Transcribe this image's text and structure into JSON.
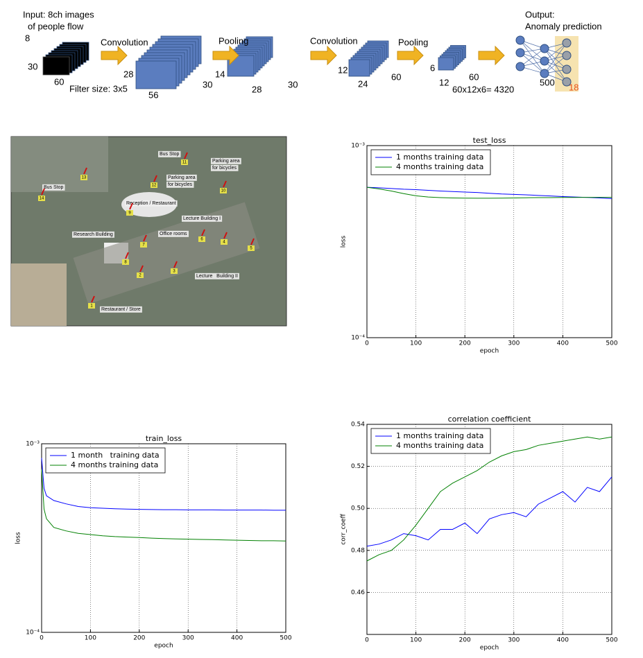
{
  "diagram": {
    "labels": [
      "Input: 8ch images",
      "of people flow",
      "8",
      "30",
      "60",
      "Filter size: 3x5",
      "Convolution",
      "28",
      "56",
      "30",
      "Pooling",
      "14",
      "28",
      "30",
      "Convolution",
      "12",
      "24",
      "60",
      "Pooling",
      "6",
      "12",
      "60",
      "60x12x6= 4320",
      "500",
      "18",
      "Output:",
      "Anomaly prediction"
    ]
  },
  "map": {
    "labels": [
      "Bus Stop",
      "Bus Stop",
      "Parking area",
      "for bicycles",
      "Parking area",
      "for bicycles",
      "Reception / Restaurant",
      "Lecture Building I",
      "Office rooms",
      "Research Building",
      "Lecture   Building II",
      "Restaurant / Store"
    ],
    "markers": [
      "1",
      "2",
      "3",
      "4",
      "5",
      "6",
      "7",
      "8",
      "9",
      "10",
      "11",
      "12",
      "13",
      "14"
    ]
  },
  "chart_data": [
    {
      "type": "line",
      "title": "test_loss",
      "x_label": "epoch",
      "y_label": "loss",
      "log_scale": true,
      "grid": true,
      "legend": "upper left",
      "x": [
        0,
        25,
        50,
        75,
        100,
        125,
        150,
        175,
        200,
        225,
        250,
        275,
        300,
        325,
        350,
        375,
        400,
        425,
        450,
        475,
        500
      ],
      "xlim": [
        0,
        500
      ],
      "xticks": [
        0,
        100,
        200,
        300,
        400,
        500
      ],
      "ylim": [
        0.0001,
        0.001
      ],
      "yticks": [
        {
          "value": 0.0001,
          "label": "10⁻⁴"
        },
        {
          "value": 0.001,
          "label": "10⁻³"
        }
      ],
      "series": [
        {
          "name": "1 months training data",
          "color": "#0000ff",
          "values": [
            0.000607,
            0.000603,
            0.000598,
            0.000593,
            0.00059,
            0.000585,
            0.00058,
            0.000577,
            0.000573,
            0.00057,
            0.000565,
            0.00056,
            0.000557,
            0.000554,
            0.00055,
            0.000547,
            0.000543,
            0.00054,
            0.000537,
            0.000534,
            0.00053
          ]
        },
        {
          "name": "4 months training data",
          "color": "#008000",
          "values": [
            0.000607,
            0.000595,
            0.00058,
            0.000562,
            0.000548,
            0.00054,
            0.000536,
            0.000534,
            0.000533,
            0.000532,
            0.000532,
            0.000533,
            0.000534,
            0.000535,
            0.000536,
            0.000536,
            0.000537,
            0.000537,
            0.000538,
            0.000538,
            0.000538
          ]
        }
      ]
    },
    {
      "type": "line",
      "title": "train_loss",
      "x_label": "epoch",
      "y_label": "loss",
      "log_scale": true,
      "grid": true,
      "legend": "upper left",
      "x": [
        0,
        5,
        10,
        25,
        50,
        75,
        100,
        125,
        150,
        175,
        200,
        225,
        250,
        275,
        300,
        325,
        350,
        375,
        400,
        425,
        450,
        475,
        500
      ],
      "xlim": [
        0,
        500
      ],
      "xticks": [
        0,
        100,
        200,
        300,
        400,
        500
      ],
      "ylim": [
        0.0001,
        0.001
      ],
      "yticks": [
        {
          "value": 0.0001,
          "label": "10⁻⁴"
        },
        {
          "value": 0.001,
          "label": "10⁻³"
        }
      ],
      "series": [
        {
          "name": "1 month   training data",
          "color": "#0000ff",
          "values": [
            0.00084,
            0.00058,
            0.00053,
            0.0005,
            0.00048,
            0.000465,
            0.000458,
            0.000455,
            0.000452,
            0.00045,
            0.000449,
            0.000448,
            0.000447,
            0.000447,
            0.000446,
            0.000446,
            0.000446,
            0.000445,
            0.000445,
            0.000445,
            0.000445,
            0.000444,
            0.000444
          ]
        },
        {
          "name": "4 months training data",
          "color": "#008000",
          "values": [
            0.00073,
            0.00045,
            0.0004,
            0.00036,
            0.000345,
            0.000335,
            0.00033,
            0.000325,
            0.000322,
            0.00032,
            0.000318,
            0.000316,
            0.000314,
            0.000313,
            0.000312,
            0.000311,
            0.00031,
            0.000309,
            0.000308,
            0.000307,
            0.000306,
            0.000306,
            0.000305
          ]
        }
      ]
    },
    {
      "type": "line",
      "title": "correlation coefficient",
      "x_label": "epoch",
      "y_label": "corr_coeff",
      "log_scale": false,
      "grid": true,
      "legend": "upper left",
      "x": [
        0,
        25,
        50,
        75,
        100,
        125,
        150,
        175,
        200,
        225,
        250,
        275,
        300,
        325,
        350,
        375,
        400,
        425,
        450,
        475,
        500
      ],
      "xlim": [
        0,
        500
      ],
      "xticks": [
        0,
        100,
        200,
        300,
        400,
        500
      ],
      "ylim": [
        0.44,
        0.54
      ],
      "yticks": [
        0.46,
        0.48,
        {
          "value": 0.5,
          "label": "0.50"
        },
        0.52,
        0.54
      ],
      "series": [
        {
          "name": "1 months training data",
          "color": "#0000ff",
          "values": [
            0.482,
            0.483,
            0.485,
            0.488,
            0.487,
            0.485,
            0.49,
            0.49,
            0.493,
            0.488,
            0.495,
            0.497,
            0.498,
            0.496,
            0.502,
            0.505,
            0.508,
            0.503,
            0.51,
            0.508,
            0.515
          ]
        },
        {
          "name": "4 months training data",
          "color": "#008000",
          "values": [
            0.475,
            0.478,
            0.48,
            0.485,
            0.492,
            0.5,
            0.508,
            0.512,
            0.515,
            0.518,
            0.522,
            0.525,
            0.527,
            0.528,
            0.53,
            0.531,
            0.532,
            0.533,
            0.534,
            0.533,
            0.534
          ]
        }
      ]
    }
  ]
}
